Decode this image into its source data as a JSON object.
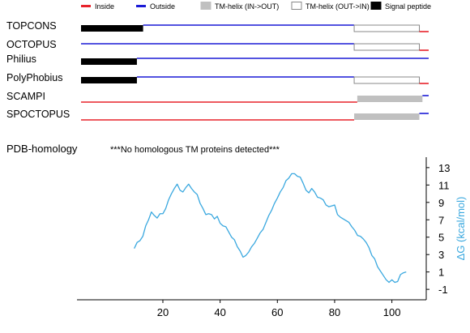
{
  "legend": [
    {
      "label": "Inside",
      "kind": "line",
      "color": "#e8222a"
    },
    {
      "label": "Outside",
      "kind": "line",
      "color": "#1a1ad6"
    },
    {
      "label": "TM-helix (IN->OUT)",
      "kind": "box",
      "color": "#c0c0c0",
      "border": "#c0c0c0"
    },
    {
      "label": "TM-helix (OUT->IN)",
      "kind": "box",
      "color": "#ffffff",
      "border": "#888888"
    },
    {
      "label": "Signal peptide",
      "kind": "box",
      "color": "#000000",
      "border": "#000000"
    }
  ],
  "colors": {
    "inside": "#e8222a",
    "outside": "#1a1ad6",
    "tm_in_out": "#c0c0c0",
    "tm_out_in_border": "#888888",
    "signal": "#000000",
    "dg_curve": "#3aa8df",
    "axis": "#000000"
  },
  "pdb_homology": {
    "label": "PDB-homology",
    "message": "***No homologous TM proteins detected***"
  },
  "chart_data": [
    {
      "type": "topology-tracks",
      "x_range": [
        1,
        112
      ],
      "tracks": [
        {
          "name": "TOPCONS",
          "segments": [
            {
              "kind": "signal",
              "start": 1,
              "end": 21
            },
            {
              "kind": "outside",
              "start": 21,
              "end": 89
            },
            {
              "kind": "tm_out_in",
              "start": 89,
              "end": 110
            },
            {
              "kind": "inside",
              "start": 110,
              "end": 114
            }
          ]
        },
        {
          "name": "OCTOPUS",
          "segments": [
            {
              "kind": "outside",
              "start": 1,
              "end": 89
            },
            {
              "kind": "tm_out_in",
              "start": 89,
              "end": 110
            },
            {
              "kind": "inside",
              "start": 110,
              "end": 114
            }
          ]
        },
        {
          "name": "Philius",
          "segments": [
            {
              "kind": "signal",
              "start": 1,
              "end": 19
            },
            {
              "kind": "outside",
              "start": 19,
              "end": 114
            }
          ]
        },
        {
          "name": "PolyPhobius",
          "segments": [
            {
              "kind": "signal",
              "start": 1,
              "end": 19
            },
            {
              "kind": "outside",
              "start": 19,
              "end": 89
            },
            {
              "kind": "tm_out_in",
              "start": 89,
              "end": 110
            },
            {
              "kind": "inside",
              "start": 110,
              "end": 114
            }
          ]
        },
        {
          "name": "SCAMPI",
          "segments": [
            {
              "kind": "inside",
              "start": 1,
              "end": 90
            },
            {
              "kind": "tm_in_out",
              "start": 90,
              "end": 111
            },
            {
              "kind": "outside",
              "start": 111,
              "end": 114
            }
          ]
        },
        {
          "name": "SPOCTOPUS",
          "segments": [
            {
              "kind": "inside",
              "start": 1,
              "end": 89
            },
            {
              "kind": "tm_in_out",
              "start": 89,
              "end": 110
            },
            {
              "kind": "outside",
              "start": 110,
              "end": 114
            }
          ]
        }
      ]
    },
    {
      "type": "line",
      "xlabel": "",
      "ylabel": "ΔG (kcal/mol)",
      "xlim": [
        -10,
        112
      ],
      "ylim": [
        -2.2,
        14.2
      ],
      "x_ticks": [
        20,
        40,
        60,
        80,
        100
      ],
      "y_ticks": [
        -1,
        1,
        3,
        5,
        7,
        9,
        11,
        13
      ],
      "series": [
        {
          "x": [
            10,
            11,
            12,
            13,
            14,
            15,
            16,
            17,
            18,
            19,
            20,
            21,
            22,
            23,
            24,
            25,
            26,
            27,
            28,
            29,
            30,
            31,
            32,
            33,
            34,
            35,
            36,
            37,
            38,
            39,
            40,
            41,
            42,
            43,
            44,
            45,
            46,
            47,
            48,
            49,
            50,
            51,
            52,
            53,
            54,
            55,
            56,
            57,
            58,
            59,
            60,
            61,
            62,
            63,
            64,
            65,
            66,
            67,
            68,
            69,
            70,
            71,
            72,
            73,
            74,
            75,
            76,
            77,
            78,
            79,
            80,
            81,
            82,
            83,
            84,
            85,
            86,
            87,
            88,
            89,
            90,
            91,
            92,
            93,
            94,
            95,
            96,
            97,
            98,
            99,
            100,
            101,
            102,
            103,
            104,
            105
          ],
          "values": [
            3.7,
            4.4,
            4.6,
            5.1,
            6.3,
            7.0,
            7.9,
            7.5,
            7.2,
            7.7,
            7.7,
            8.3,
            9.3,
            10.0,
            10.6,
            11.1,
            10.4,
            10.2,
            10.7,
            11.1,
            10.6,
            10.2,
            9.9,
            8.9,
            8.3,
            7.6,
            7.7,
            7.6,
            7.1,
            7.4,
            6.6,
            6.3,
            6.2,
            5.6,
            5.0,
            4.7,
            3.9,
            3.4,
            2.7,
            2.9,
            3.3,
            3.9,
            4.3,
            4.9,
            5.5,
            5.9,
            6.7,
            7.5,
            8.1,
            8.9,
            9.5,
            10.2,
            10.7,
            11.5,
            11.8,
            12.3,
            12.3,
            12.0,
            11.9,
            11.2,
            10.4,
            10.1,
            10.6,
            10.2,
            9.6,
            9.5,
            9.3,
            8.7,
            8.5,
            8.6,
            8.7,
            7.6,
            7.3,
            7.1,
            6.9,
            6.7,
            6.2,
            5.8,
            5.2,
            5.1,
            4.8,
            4.4,
            3.8,
            2.9,
            2.5,
            1.6,
            1.1,
            0.6,
            0.1,
            -0.2,
            0.1,
            -0.2,
            -0.1,
            0.7,
            0.9,
            1.0
          ]
        }
      ]
    }
  ]
}
